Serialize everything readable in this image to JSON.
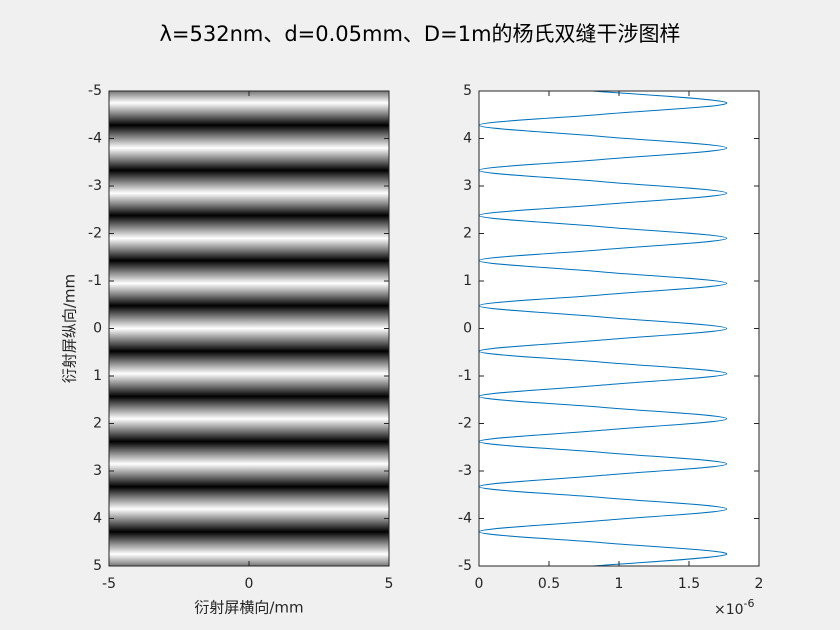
{
  "title": "λ=532nm、d=0.05mm、D=1m的杨氏双缝干涉图样",
  "chart_data": [
    {
      "type": "image",
      "colormap": "gray",
      "xlabel": "衍射屏横向/mm",
      "ylabel": "衍射屏纵向/mm",
      "xlim": [
        -5,
        5
      ],
      "xticks": [
        -5,
        0,
        5
      ],
      "ylim": [
        -5,
        5
      ],
      "y_reversed": true,
      "yticks": [
        -5,
        -4,
        -3,
        -2,
        -1,
        0,
        1,
        2,
        3,
        4,
        5
      ],
      "y": [
        -5,
        -4.75,
        -4.51,
        -4.28,
        -4.04,
        -3.8,
        -3.56,
        -3.33,
        -3.09,
        -2.85,
        -2.61,
        -2.38,
        -2.14,
        -1.9,
        -1.66,
        -1.43,
        -1.19,
        -0.95,
        -0.71,
        -0.48,
        -0.24,
        0,
        0.24,
        0.48,
        0.71,
        0.95,
        1.19,
        1.43,
        1.66,
        1.9,
        2.14,
        2.38,
        2.61,
        2.85,
        3.09,
        3.33,
        3.56,
        3.8,
        4.04,
        4.28,
        4.51,
        4.75,
        5
      ],
      "values": [
        8.1e-07,
        1.77e-06,
        8.85e-07,
        0,
        8.85e-07,
        1.77e-06,
        8.85e-07,
        0,
        8.85e-07,
        1.77e-06,
        8.85e-07,
        0,
        8.85e-07,
        1.77e-06,
        8.85e-07,
        0,
        8.85e-07,
        1.77e-06,
        8.85e-07,
        0,
        8.85e-07,
        1.77e-06,
        8.85e-07,
        0,
        8.85e-07,
        1.77e-06,
        8.85e-07,
        0,
        8.85e-07,
        1.77e-06,
        8.85e-07,
        0,
        8.85e-07,
        1.77e-06,
        8.85e-07,
        0,
        8.85e-07,
        1.77e-06,
        8.85e-07,
        0,
        8.85e-07,
        1.77e-06,
        8.1e-07
      ]
    },
    {
      "type": "line",
      "xlim": [
        0,
        2e-06
      ],
      "xticks": [
        0,
        {
          "value": 5e-07,
          "label": "0.5"
        },
        {
          "value": 1e-06,
          "label": "1"
        },
        {
          "value": 1.5e-06,
          "label": "1.5"
        },
        {
          "value": 2e-06,
          "label": "2"
        }
      ],
      "x_exponent": {
        "base": "×10",
        "exponent": "-6"
      },
      "ylim": [
        -5,
        5
      ],
      "yticks": [
        -5,
        -4,
        -3,
        -2,
        -1,
        0,
        1,
        2,
        3,
        4,
        5
      ],
      "y": [
        -5,
        -4.75,
        -4.51,
        -4.28,
        -4.04,
        -3.8,
        -3.56,
        -3.33,
        -3.09,
        -2.85,
        -2.61,
        -2.38,
        -2.14,
        -1.9,
        -1.66,
        -1.43,
        -1.19,
        -0.95,
        -0.71,
        -0.48,
        -0.24,
        0,
        0.24,
        0.48,
        0.71,
        0.95,
        1.19,
        1.43,
        1.66,
        1.9,
        2.14,
        2.38,
        2.61,
        2.85,
        3.09,
        3.33,
        3.56,
        3.8,
        4.04,
        4.28,
        4.51,
        4.75,
        5
      ],
      "series": [
        {
          "color": "#0072bd",
          "values": [
            8.1e-07,
            1.77e-06,
            8.85e-07,
            0,
            8.85e-07,
            1.77e-06,
            8.85e-07,
            0,
            8.85e-07,
            1.77e-06,
            8.85e-07,
            0,
            8.85e-07,
            1.77e-06,
            8.85e-07,
            0,
            8.85e-07,
            1.77e-06,
            8.85e-07,
            0,
            8.85e-07,
            1.77e-06,
            8.85e-07,
            0,
            8.85e-07,
            1.77e-06,
            8.85e-07,
            0,
            8.85e-07,
            1.77e-06,
            8.85e-07,
            0,
            8.85e-07,
            1.77e-06,
            8.85e-07,
            0,
            8.85e-07,
            1.77e-06,
            8.85e-07,
            0,
            8.85e-07,
            1.77e-06,
            8.1e-07
          ]
        }
      ]
    }
  ]
}
